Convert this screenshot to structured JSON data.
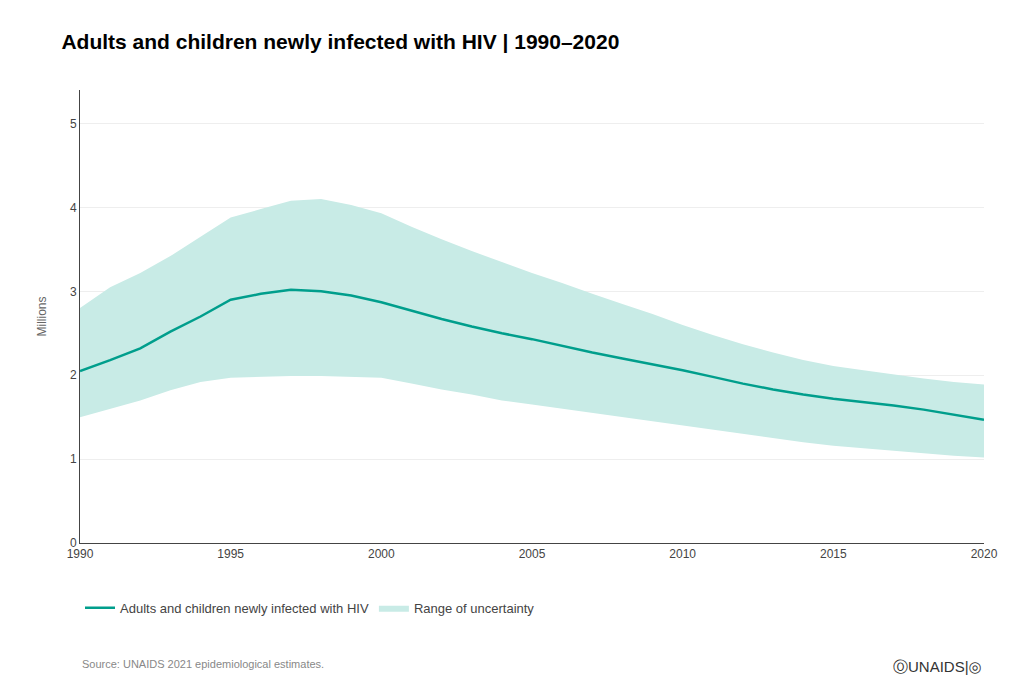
{
  "chart_data": {
    "type": "line",
    "title": "Adults and children newly infected with HIV | 1990–2020",
    "ylabel": "Millions",
    "x": [
      1990,
      1991,
      1992,
      1993,
      1994,
      1995,
      1996,
      1997,
      1998,
      1999,
      2000,
      2001,
      2002,
      2003,
      2004,
      2005,
      2006,
      2007,
      2008,
      2009,
      2010,
      2011,
      2012,
      2013,
      2014,
      2015,
      2016,
      2017,
      2018,
      2019,
      2020
    ],
    "series": [
      {
        "name": "Adults and children newly infected with HIV",
        "type": "line",
        "color": "#009E8C",
        "values": [
          2.05,
          2.18,
          2.32,
          2.52,
          2.7,
          2.9,
          2.97,
          3.02,
          3.0,
          2.95,
          2.87,
          2.77,
          2.67,
          2.58,
          2.5,
          2.43,
          2.35,
          2.27,
          2.2,
          2.13,
          2.06,
          1.98,
          1.9,
          1.83,
          1.77,
          1.72,
          1.68,
          1.64,
          1.59,
          1.53,
          1.47
        ]
      },
      {
        "name": "Range of uncertainty",
        "type": "band",
        "color": "#C8EBE6",
        "lower": [
          1.5,
          1.6,
          1.7,
          1.82,
          1.92,
          1.97,
          1.98,
          1.99,
          1.99,
          1.98,
          1.97,
          1.9,
          1.83,
          1.77,
          1.7,
          1.65,
          1.6,
          1.55,
          1.5,
          1.45,
          1.4,
          1.35,
          1.3,
          1.25,
          1.2,
          1.16,
          1.13,
          1.1,
          1.07,
          1.04,
          1.02
        ],
        "upper": [
          2.8,
          3.05,
          3.22,
          3.42,
          3.65,
          3.88,
          3.98,
          4.08,
          4.1,
          4.03,
          3.93,
          3.77,
          3.62,
          3.48,
          3.35,
          3.22,
          3.1,
          2.97,
          2.85,
          2.73,
          2.6,
          2.48,
          2.37,
          2.27,
          2.18,
          2.11,
          2.06,
          2.01,
          1.96,
          1.92,
          1.89
        ]
      }
    ],
    "xlim": [
      1990,
      2020
    ],
    "xticks": [
      1990,
      1995,
      2000,
      2005,
      2010,
      2015,
      2020
    ],
    "ylim": [
      0,
      5.4
    ],
    "yticks": [
      0,
      1,
      2,
      3,
      4,
      5
    ],
    "grid": true,
    "legend": "bottom",
    "annotations": [
      "Source: UNAIDS 2021 epidemiological estimates.",
      "ⓄUNAIDS|◎"
    ]
  }
}
